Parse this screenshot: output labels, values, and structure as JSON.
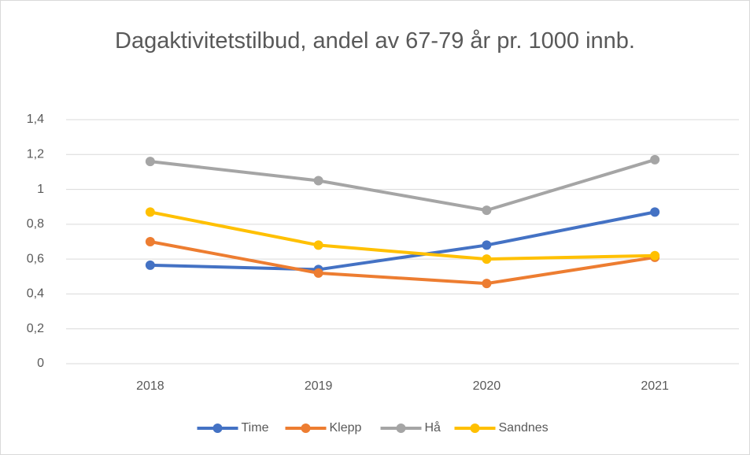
{
  "chart_data": {
    "type": "line",
    "title": "Dagaktivitetstilbud, andel av 67-79 år pr. 1000 innb.",
    "categories": [
      "2018",
      "2019",
      "2020",
      "2021"
    ],
    "series": [
      {
        "name": "Time",
        "color": "#4472c4",
        "values": [
          0.565,
          0.54,
          0.68,
          0.87
        ]
      },
      {
        "name": "Klepp",
        "color": "#ed7d31",
        "values": [
          0.7,
          0.52,
          0.46,
          0.61
        ]
      },
      {
        "name": "Hå",
        "color": "#a5a5a5",
        "values": [
          1.16,
          1.05,
          0.88,
          1.17
        ]
      },
      {
        "name": "Sandnes",
        "color": "#ffc000",
        "values": [
          0.87,
          0.68,
          0.6,
          0.62
        ]
      }
    ],
    "ylim": [
      0,
      1.4
    ],
    "yticks": [
      0,
      {
        "value": 0.2,
        "label": "0,2"
      },
      {
        "value": 0.4,
        "label": "0,4"
      },
      {
        "value": 0.6,
        "label": "0,6"
      },
      {
        "value": 0.8,
        "label": "0,8"
      },
      1,
      {
        "value": 1.2,
        "label": "1,2"
      },
      {
        "value": 1.4,
        "label": "1,4"
      }
    ],
    "grid": true,
    "legend": "bottom"
  }
}
